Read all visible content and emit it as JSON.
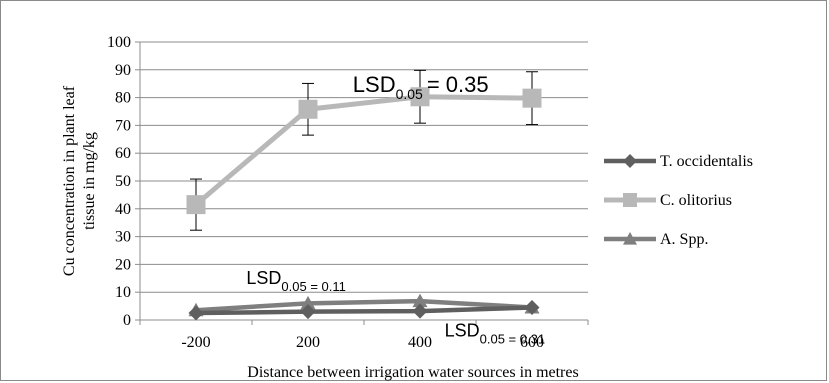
{
  "chart_data": {
    "type": "line",
    "xlabel": "Distance between irrigation water sources in metres",
    "ylabel": [
      "Cu concentration in plant leaf",
      "tissue in mg/kg"
    ],
    "categories": [
      "-200",
      "200",
      "400",
      "600"
    ],
    "ylim": [
      0,
      100
    ],
    "yticks": [
      0,
      10,
      20,
      30,
      40,
      50,
      60,
      70,
      80,
      90,
      100
    ],
    "grid": true,
    "legend_position": "right",
    "series": [
      {
        "name": "T. occidentalis",
        "marker": "diamond",
        "color": "#5f5f5f",
        "values": [
          2.5,
          3.0,
          3.2,
          4.5
        ]
      },
      {
        "name": "C. olitorius",
        "marker": "square",
        "color": "#b8b8b8",
        "values": [
          41.5,
          75.8,
          80.3,
          79.8
        ],
        "error": [
          9.2,
          9.3,
          9.5,
          9.5
        ]
      },
      {
        "name": "A. Spp.",
        "marker": "triangle",
        "color": "#7f7f7f",
        "values": [
          3.5,
          6.0,
          6.8,
          4.5
        ]
      }
    ],
    "annotations": [
      {
        "main": "LSD",
        "sub": "0.05",
        "rest": "= 0.35",
        "sub_inline": false,
        "anchor_x": 1.4,
        "anchor_y": 82
      },
      {
        "main": "LSD",
        "sub": "0.05 = 0.11",
        "rest": "",
        "sub_inline": true,
        "anchor_x": 0.45,
        "anchor_y": 13
      },
      {
        "main": "LSD",
        "sub": "0.05 = 0.31",
        "rest": "",
        "sub_inline": true,
        "anchor_x": 2.22,
        "anchor_y": -6
      }
    ]
  }
}
